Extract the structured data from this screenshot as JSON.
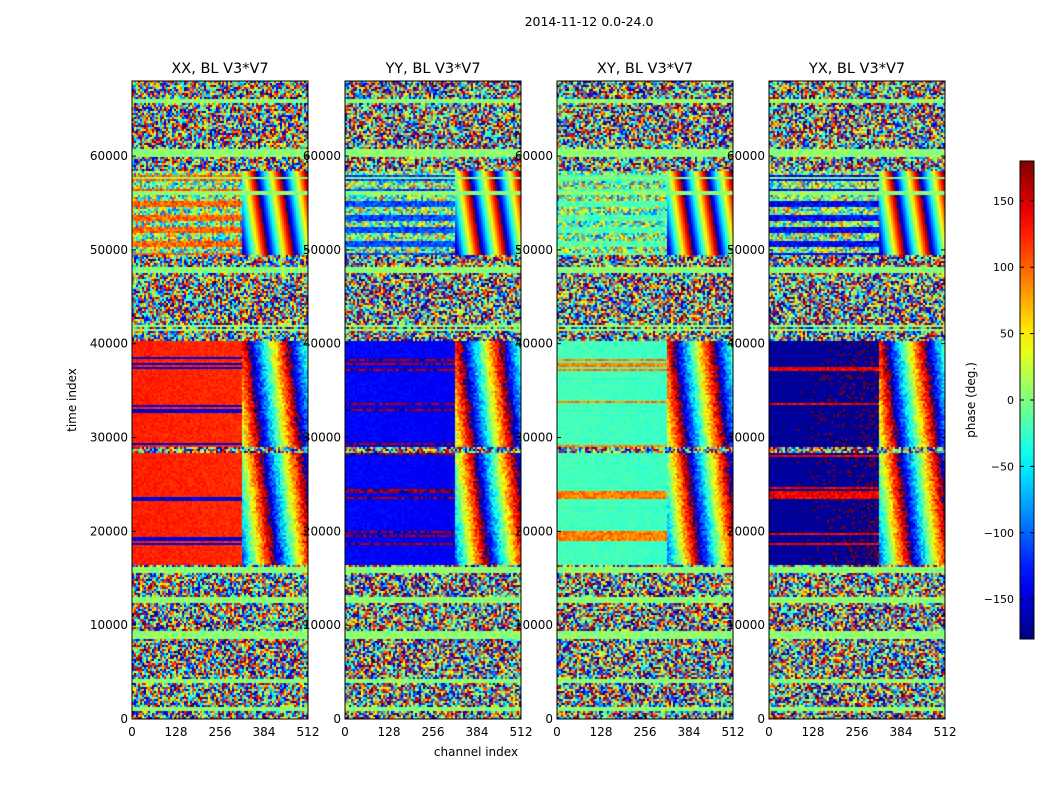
{
  "suptitle": "2014-11-12 0.0-24.0",
  "colors": {
    "frame": "#000000",
    "background": "#ffffff"
  },
  "chart_data": {
    "type": "heatmap",
    "colormap": "jet",
    "x_axis": {
      "label": "channel index",
      "xlim": [
        0,
        512
      ],
      "ticks": [
        0,
        128,
        256,
        384,
        512
      ]
    },
    "y_axis": {
      "label": "time index",
      "ylim": [
        0,
        68000
      ],
      "ticks": [
        0,
        10000,
        20000,
        30000,
        40000,
        50000,
        60000
      ]
    },
    "colorbar": {
      "label": "phase (deg.)",
      "clim": [
        -180,
        180
      ],
      "ticks": [
        -150,
        -100,
        -50,
        0,
        50,
        100,
        150
      ]
    },
    "panels": [
      {
        "title": "XX, BL V3*V7",
        "base_phase": 125,
        "wrapped_phase": -150,
        "amplitude_band_color": "#00ff8f"
      },
      {
        "title": "YY, BL V3*V7",
        "base_phase": -135,
        "wrapped_phase": 170,
        "amplitude_band_color": "#00ff8f"
      },
      {
        "title": "XY, BL V3*V7",
        "base_phase": -20,
        "wrapped_phase": 90,
        "amplitude_band_color": "#00ff8f"
      },
      {
        "title": "YX, BL V3*V7",
        "base_phase": -170,
        "wrapped_phase": 140,
        "amplitude_band_color": "#00ff8f"
      }
    ],
    "structure": {
      "coherent_time_range": [
        16500,
        40500
      ],
      "coherent_channel_range": [
        0,
        320
      ],
      "gap_time": [
        28500,
        29200
      ],
      "upper_coherent_time_range": [
        49500,
        58500
      ],
      "horizontal_flag_lines": [
        1200,
        4100,
        8900,
        9200,
        12700,
        13000,
        15800,
        16100,
        41600,
        42000,
        47800,
        48200,
        56200,
        57800,
        60200,
        60600,
        66000
      ]
    }
  }
}
